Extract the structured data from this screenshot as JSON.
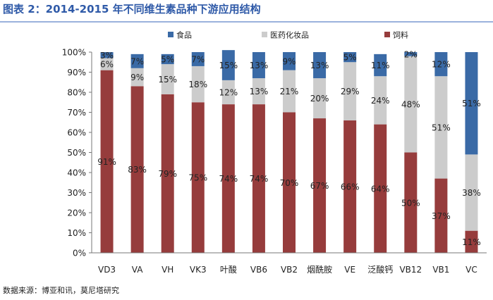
{
  "title": "图表 2：2014-2015 年不同维生素品种下游应用结构",
  "source": "数据来源：博亚和讯，莫尼塔研究",
  "colors": {
    "food": "#3a6aa6",
    "pharma": "#cccccc",
    "feed": "#963c3c"
  },
  "chart_data": {
    "type": "bar",
    "stacked": true,
    "percent": true,
    "categories": [
      "VD3",
      "VA",
      "VH",
      "VK3",
      "叶酸",
      "VB6",
      "VB2",
      "烟酰胺",
      "VE",
      "泛酸钙",
      "VB12",
      "VB1",
      "VC"
    ],
    "series": [
      {
        "name": "饲料",
        "values": [
          91,
          83,
          79,
          75,
          74,
          74,
          70,
          67,
          66,
          64,
          50,
          37,
          11
        ],
        "labels": [
          "91%",
          "83%",
          "79%",
          "75%",
          "74%",
          "74%",
          "70%",
          "67%",
          "66%",
          "64%",
          "50%",
          "37%",
          "11%"
        ]
      },
      {
        "name": "医药化妆品",
        "values": [
          6,
          9,
          15,
          18,
          12,
          13,
          21,
          20,
          29,
          24,
          48,
          51,
          38
        ],
        "labels": [
          "6%",
          "9%",
          "15%",
          "18%",
          "12%",
          "13%",
          "21%",
          "20%",
          "29%",
          "24%",
          "48%",
          "51%",
          "38%"
        ]
      },
      {
        "name": "食品",
        "values": [
          3,
          7,
          5,
          7,
          15,
          13,
          9,
          13,
          5,
          11,
          2,
          12,
          51
        ],
        "labels": [
          "3%",
          "7%",
          "5%",
          "7%",
          "15%",
          "13%",
          "9%",
          "13%",
          "5%",
          "11%",
          "2%",
          "12%",
          "51%"
        ]
      }
    ],
    "legend": [
      "食品",
      "医药化妆品",
      "饲料"
    ],
    "legend_position": "top",
    "ylim": [
      0,
      100
    ],
    "yticks": [
      "0%",
      "10%",
      "20%",
      "30%",
      "40%",
      "50%",
      "60%",
      "70%",
      "80%",
      "90%",
      "100%"
    ],
    "grid": false
  }
}
